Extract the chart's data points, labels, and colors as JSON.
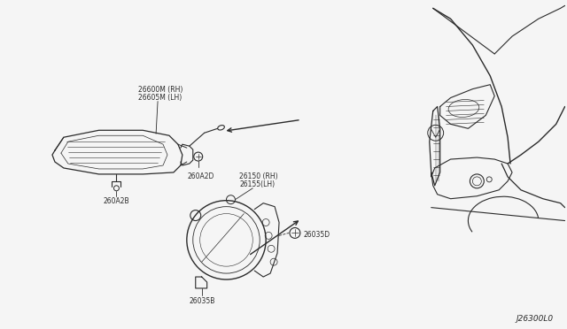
{
  "bg_color": "#f5f5f5",
  "line_color": "#2a2a2a",
  "text_color": "#2a2a2a",
  "fig_width": 6.4,
  "fig_height": 3.72,
  "dpi": 100,
  "diagram_code": "J26300L0",
  "label_26600M": "26600M (RH)",
  "label_26605M": "26605M (LH)",
  "label_260A2D": "260A2D",
  "label_260A2B": "260A2B",
  "label_26150": "26150 (RH)",
  "label_26155": "26155(LH)",
  "label_26035D": "26035D",
  "label_26035B": "26035B"
}
